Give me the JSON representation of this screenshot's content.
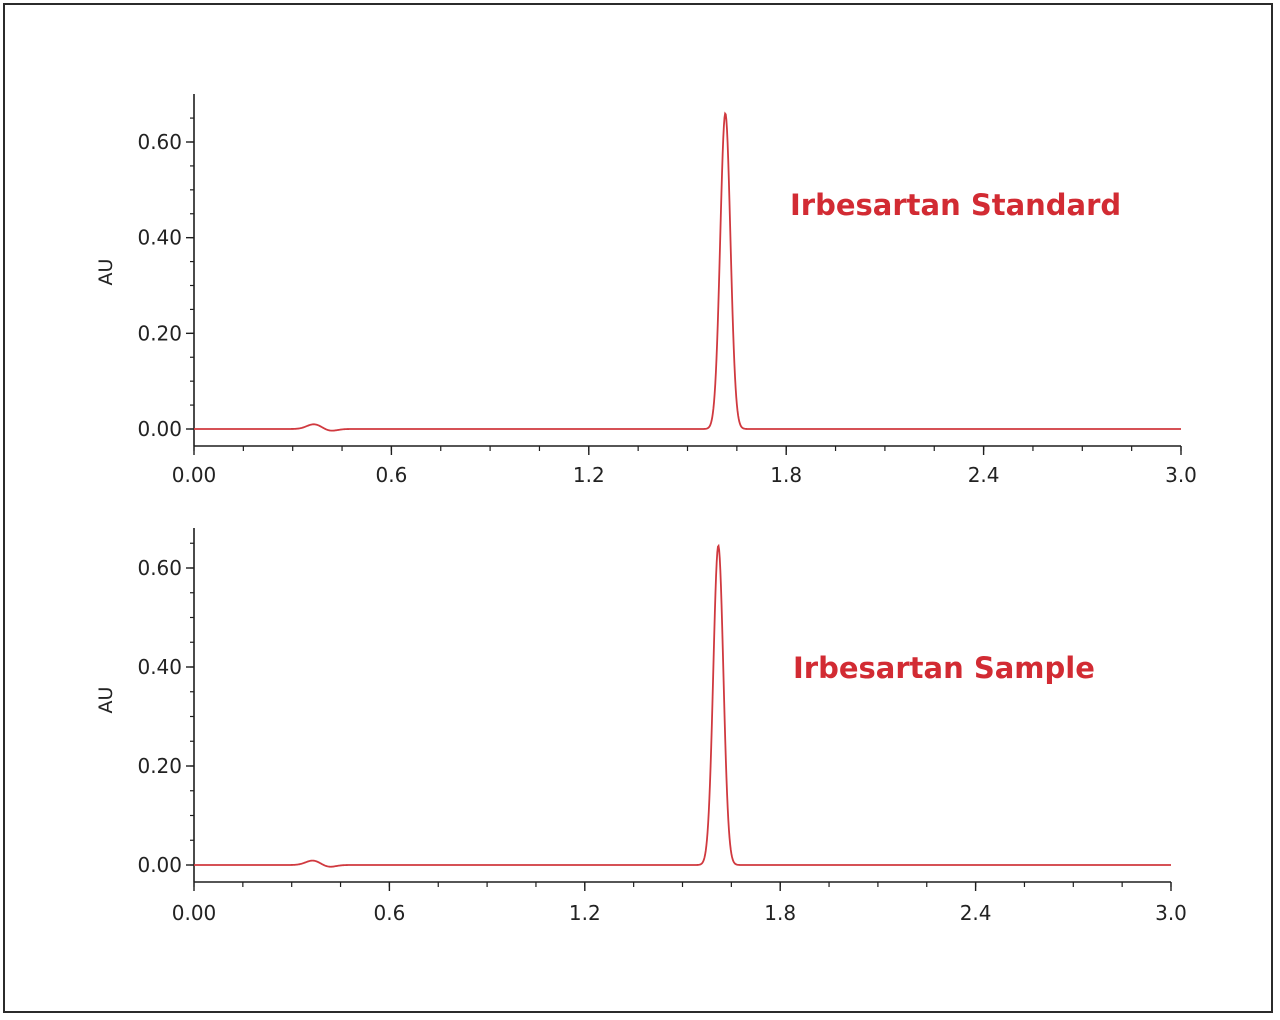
{
  "colors": {
    "trace": "#d0393f",
    "annotation": "#d22b33",
    "axis": "#1e1e1e",
    "frame": "#2b2b2b"
  },
  "chart_data": [
    {
      "type": "line",
      "title": "",
      "annotation": "Irbesartan Standard",
      "xlabel": "",
      "ylabel": "AU",
      "xlim": [
        0.0,
        3.0
      ],
      "ylim": [
        -0.035,
        0.7
      ],
      "x_ticks": [
        "0.00",
        "0.6",
        "1.2",
        "1.8",
        "2.4",
        "3.0"
      ],
      "x_tick_values": [
        0.0,
        0.6,
        1.2,
        1.8,
        2.4,
        3.0
      ],
      "x_minor_step": 0.15,
      "y_ticks": [
        "0.00",
        "0.20",
        "0.40",
        "0.60"
      ],
      "y_tick_values": [
        0.0,
        0.2,
        0.4,
        0.6
      ],
      "y_minor_step": 0.05,
      "grid": false,
      "series": [
        {
          "name": "Irbesartan Standard",
          "peaks": [
            {
              "x": 0.365,
              "height": 0.01,
              "width": 0.022
            },
            {
              "x": 0.415,
              "height": -0.004,
              "width": 0.02
            },
            {
              "x": 1.615,
              "height": 0.66,
              "width": 0.0155
            }
          ],
          "x": [
            0.0,
            0.3,
            0.365,
            0.4,
            0.45,
            1.12,
            1.55,
            1.58,
            1.6,
            1.615,
            1.63,
            1.65,
            1.68,
            2.0,
            3.0
          ],
          "values": [
            0.0,
            0.001,
            0.01,
            -0.003,
            0.0,
            0.001,
            0.0,
            0.09,
            0.48,
            0.66,
            0.48,
            0.09,
            0.003,
            0.001,
            0.0
          ]
        }
      ]
    },
    {
      "type": "line",
      "title": "",
      "annotation": "Irbesartan Sample",
      "xlabel": "",
      "ylabel": "AU",
      "xlim": [
        0.0,
        3.0
      ],
      "ylim": [
        -0.035,
        0.7
      ],
      "x_ticks": [
        "0.00",
        "0.6",
        "1.2",
        "1.8",
        "2.4",
        "3.0"
      ],
      "x_tick_values": [
        0.0,
        0.6,
        1.2,
        1.8,
        2.4,
        3.0
      ],
      "x_minor_step": 0.15,
      "y_ticks": [
        "0.00",
        "0.20",
        "0.40",
        "0.60"
      ],
      "y_tick_values": [
        0.0,
        0.2,
        0.4,
        0.6
      ],
      "y_minor_step": 0.05,
      "grid": false,
      "series": [
        {
          "name": "Irbesartan Sample",
          "peaks": [
            {
              "x": 0.365,
              "height": 0.009,
              "width": 0.022
            },
            {
              "x": 0.415,
              "height": -0.004,
              "width": 0.02
            },
            {
              "x": 1.61,
              "height": 0.645,
              "width": 0.0155
            }
          ],
          "x": [
            0.0,
            0.3,
            0.365,
            0.4,
            0.45,
            1.55,
            1.575,
            1.595,
            1.61,
            1.625,
            1.645,
            1.675,
            3.0
          ],
          "values": [
            0.0,
            0.001,
            0.009,
            -0.003,
            0.0,
            0.0,
            0.09,
            0.47,
            0.645,
            0.47,
            0.09,
            0.003,
            0.0
          ]
        }
      ]
    }
  ],
  "panels": [
    {
      "annotation": "Irbesartan Standard",
      "ylabel": "AU"
    },
    {
      "annotation": "Irbesartan Sample",
      "ylabel": "AU"
    }
  ]
}
